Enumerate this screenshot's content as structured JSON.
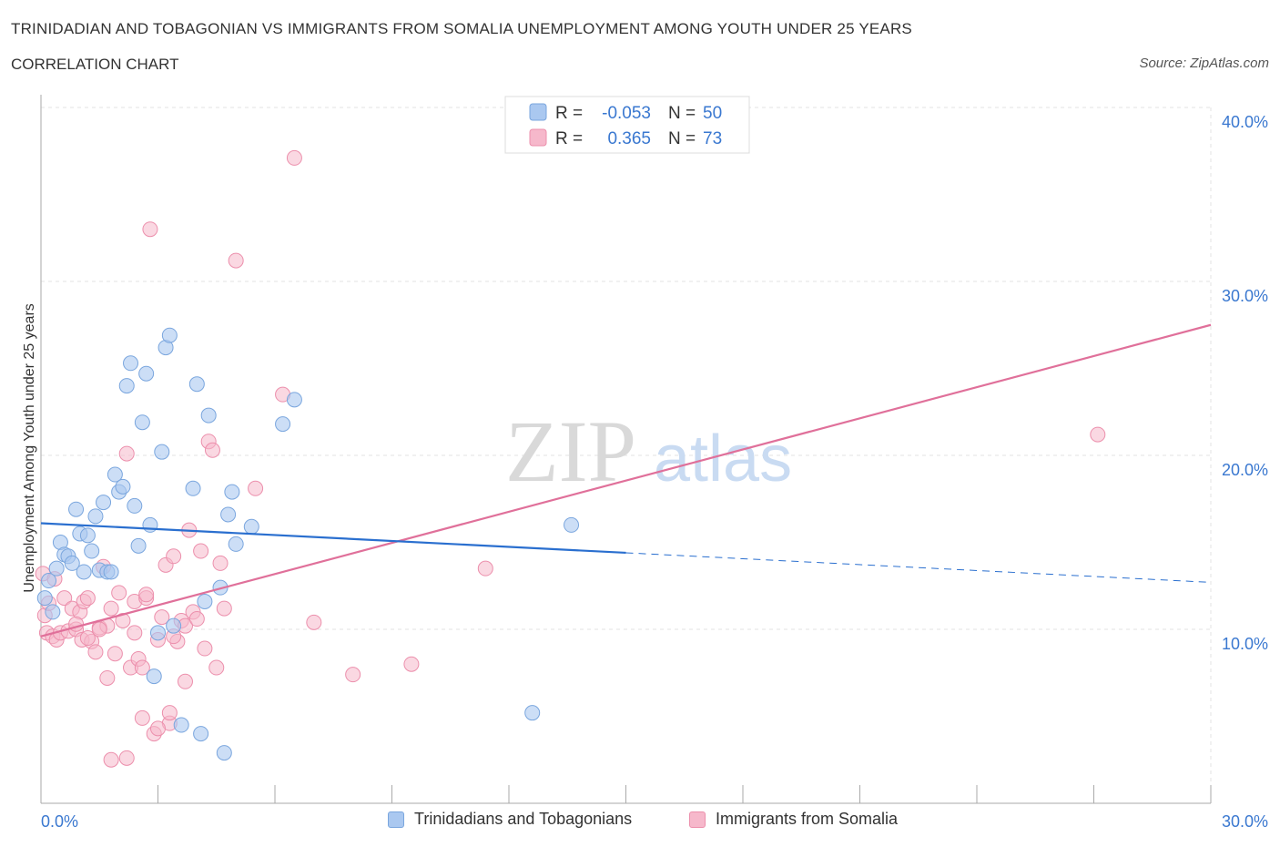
{
  "header": {
    "title": "TRINIDADIAN AND TOBAGONIAN VS IMMIGRANTS FROM SOMALIA UNEMPLOYMENT AMONG YOUTH UNDER 25 YEARS",
    "subtitle": "CORRELATION CHART",
    "source": "Source: ZipAtlas.com"
  },
  "watermark": {
    "zip": "ZIP",
    "atlas": "atlas"
  },
  "colors": {
    "blue_fill": "#aac8f0",
    "blue_stroke": "#7aa6de",
    "blue_line": "#2a6fcf",
    "pink_fill": "#f6b8cb",
    "pink_stroke": "#ec8fac",
    "pink_line": "#e0709a",
    "axis_label": "#3a78d0",
    "grid": "#e3e3e3"
  },
  "stats_legend": [
    {
      "r_label": "R =",
      "r_value": "-0.053",
      "n_label": "N =",
      "n_value": "50",
      "series": "blue"
    },
    {
      "r_label": "R =",
      "r_value": "0.365",
      "n_label": "N =",
      "n_value": "73",
      "series": "pink"
    }
  ],
  "chart_data": {
    "type": "scatter",
    "title": "TRINIDADIAN AND TOBAGONIAN VS IMMIGRANTS FROM SOMALIA UNEMPLOYMENT AMONG YOUTH UNDER 25 YEARS",
    "subtitle": "CORRELATION CHART",
    "xlabel": "",
    "ylabel": "Unemployment Among Youth under 25 years",
    "xlim": [
      0,
      30
    ],
    "ylim": [
      0,
      40
    ],
    "x_ticks_labels": [
      "0.0%",
      "30.0%"
    ],
    "y_ticks": [
      10,
      20,
      30,
      40
    ],
    "y_tick_labels": [
      "10.0%",
      "20.0%",
      "30.0%",
      "40.0%"
    ],
    "grid": true,
    "legend_placement": "bottom",
    "series": [
      {
        "name": "Trinidadians and Tobagonians",
        "color": "blue",
        "r": -0.053,
        "n": 50,
        "trend": {
          "x0": 0.0,
          "y0": 16.1,
          "x1": 15.0,
          "y1": 14.4,
          "dashed_to_x": 30.0,
          "dashed_to_y": 12.7
        },
        "points": [
          [
            0.1,
            11.8
          ],
          [
            0.2,
            12.8
          ],
          [
            0.3,
            11.0
          ],
          [
            0.4,
            13.5
          ],
          [
            0.5,
            15.0
          ],
          [
            0.6,
            14.3
          ],
          [
            0.7,
            14.2
          ],
          [
            0.8,
            13.8
          ],
          [
            0.9,
            16.9
          ],
          [
            1.0,
            15.5
          ],
          [
            1.1,
            13.3
          ],
          [
            1.2,
            15.4
          ],
          [
            1.3,
            14.5
          ],
          [
            1.4,
            16.5
          ],
          [
            1.5,
            13.4
          ],
          [
            1.6,
            17.3
          ],
          [
            1.7,
            13.3
          ],
          [
            1.8,
            13.3
          ],
          [
            1.9,
            18.9
          ],
          [
            2.0,
            17.9
          ],
          [
            2.1,
            18.2
          ],
          [
            2.2,
            24.0
          ],
          [
            2.3,
            25.3
          ],
          [
            2.4,
            17.1
          ],
          [
            2.5,
            14.8
          ],
          [
            2.6,
            21.9
          ],
          [
            2.7,
            24.7
          ],
          [
            2.8,
            16.0
          ],
          [
            2.9,
            7.3
          ],
          [
            3.0,
            9.8
          ],
          [
            3.1,
            20.2
          ],
          [
            3.2,
            26.2
          ],
          [
            3.3,
            26.9
          ],
          [
            3.4,
            10.2
          ],
          [
            3.6,
            4.5
          ],
          [
            3.9,
            18.1
          ],
          [
            4.0,
            24.1
          ],
          [
            4.1,
            4.0
          ],
          [
            4.2,
            11.6
          ],
          [
            4.3,
            22.3
          ],
          [
            4.6,
            12.4
          ],
          [
            4.7,
            2.9
          ],
          [
            4.8,
            16.6
          ],
          [
            4.9,
            17.9
          ],
          [
            5.0,
            14.9
          ],
          [
            5.4,
            15.9
          ],
          [
            6.2,
            21.8
          ],
          [
            6.5,
            23.2
          ],
          [
            13.6,
            16.0
          ],
          [
            12.6,
            5.2
          ]
        ]
      },
      {
        "name": "Immigrants from Somalia",
        "color": "pink",
        "r": 0.365,
        "n": 73,
        "trend": {
          "x0": 0.0,
          "y0": 9.6,
          "x1": 30.0,
          "y1": 27.5
        },
        "points": [
          [
            0.05,
            13.2
          ],
          [
            0.1,
            10.8
          ],
          [
            0.15,
            9.8
          ],
          [
            0.2,
            11.5
          ],
          [
            0.3,
            9.6
          ],
          [
            0.35,
            12.9
          ],
          [
            0.4,
            9.4
          ],
          [
            0.5,
            9.8
          ],
          [
            0.6,
            11.8
          ],
          [
            0.7,
            9.9
          ],
          [
            0.8,
            11.2
          ],
          [
            0.9,
            10.0
          ],
          [
            1.0,
            11.0
          ],
          [
            1.05,
            9.4
          ],
          [
            1.1,
            11.6
          ],
          [
            1.2,
            11.8
          ],
          [
            1.3,
            9.3
          ],
          [
            1.4,
            8.7
          ],
          [
            1.5,
            10.1
          ],
          [
            1.6,
            13.6
          ],
          [
            1.7,
            10.2
          ],
          [
            1.8,
            11.2
          ],
          [
            1.9,
            8.6
          ],
          [
            2.0,
            12.1
          ],
          [
            2.1,
            10.5
          ],
          [
            2.2,
            20.1
          ],
          [
            2.3,
            7.8
          ],
          [
            2.4,
            11.6
          ],
          [
            2.5,
            8.3
          ],
          [
            2.6,
            7.8
          ],
          [
            2.7,
            11.8
          ],
          [
            2.8,
            33.0
          ],
          [
            2.9,
            4.0
          ],
          [
            3.0,
            9.4
          ],
          [
            3.1,
            10.7
          ],
          [
            3.2,
            13.7
          ],
          [
            3.3,
            4.6
          ],
          [
            3.4,
            14.2
          ],
          [
            3.5,
            9.3
          ],
          [
            3.6,
            10.5
          ],
          [
            3.7,
            10.2
          ],
          [
            3.8,
            15.7
          ],
          [
            3.9,
            11.0
          ],
          [
            4.0,
            10.6
          ],
          [
            4.1,
            14.5
          ],
          [
            4.2,
            8.9
          ],
          [
            4.3,
            20.8
          ],
          [
            4.4,
            20.3
          ],
          [
            4.5,
            7.8
          ],
          [
            4.6,
            13.8
          ],
          [
            4.7,
            11.2
          ],
          [
            5.0,
            31.2
          ],
          [
            5.5,
            18.1
          ],
          [
            6.2,
            23.5
          ],
          [
            6.5,
            37.1
          ],
          [
            7.0,
            10.4
          ],
          [
            8.0,
            7.4
          ],
          [
            9.5,
            8.0
          ],
          [
            11.4,
            13.5
          ],
          [
            27.1,
            21.2
          ],
          [
            1.8,
            2.5
          ],
          [
            2.2,
            2.6
          ],
          [
            3.0,
            4.3
          ],
          [
            2.6,
            4.9
          ],
          [
            3.3,
            5.2
          ],
          [
            1.7,
            7.2
          ],
          [
            3.7,
            7.0
          ],
          [
            2.4,
            9.8
          ],
          [
            1.2,
            9.5
          ],
          [
            0.9,
            10.3
          ],
          [
            1.5,
            10.0
          ],
          [
            3.4,
            9.6
          ],
          [
            2.7,
            12.0
          ]
        ]
      }
    ]
  },
  "legend": {
    "items": [
      {
        "label": "Trinidadians and Tobagonians",
        "color": "blue"
      },
      {
        "label": "Immigrants from Somalia",
        "color": "pink"
      }
    ]
  }
}
